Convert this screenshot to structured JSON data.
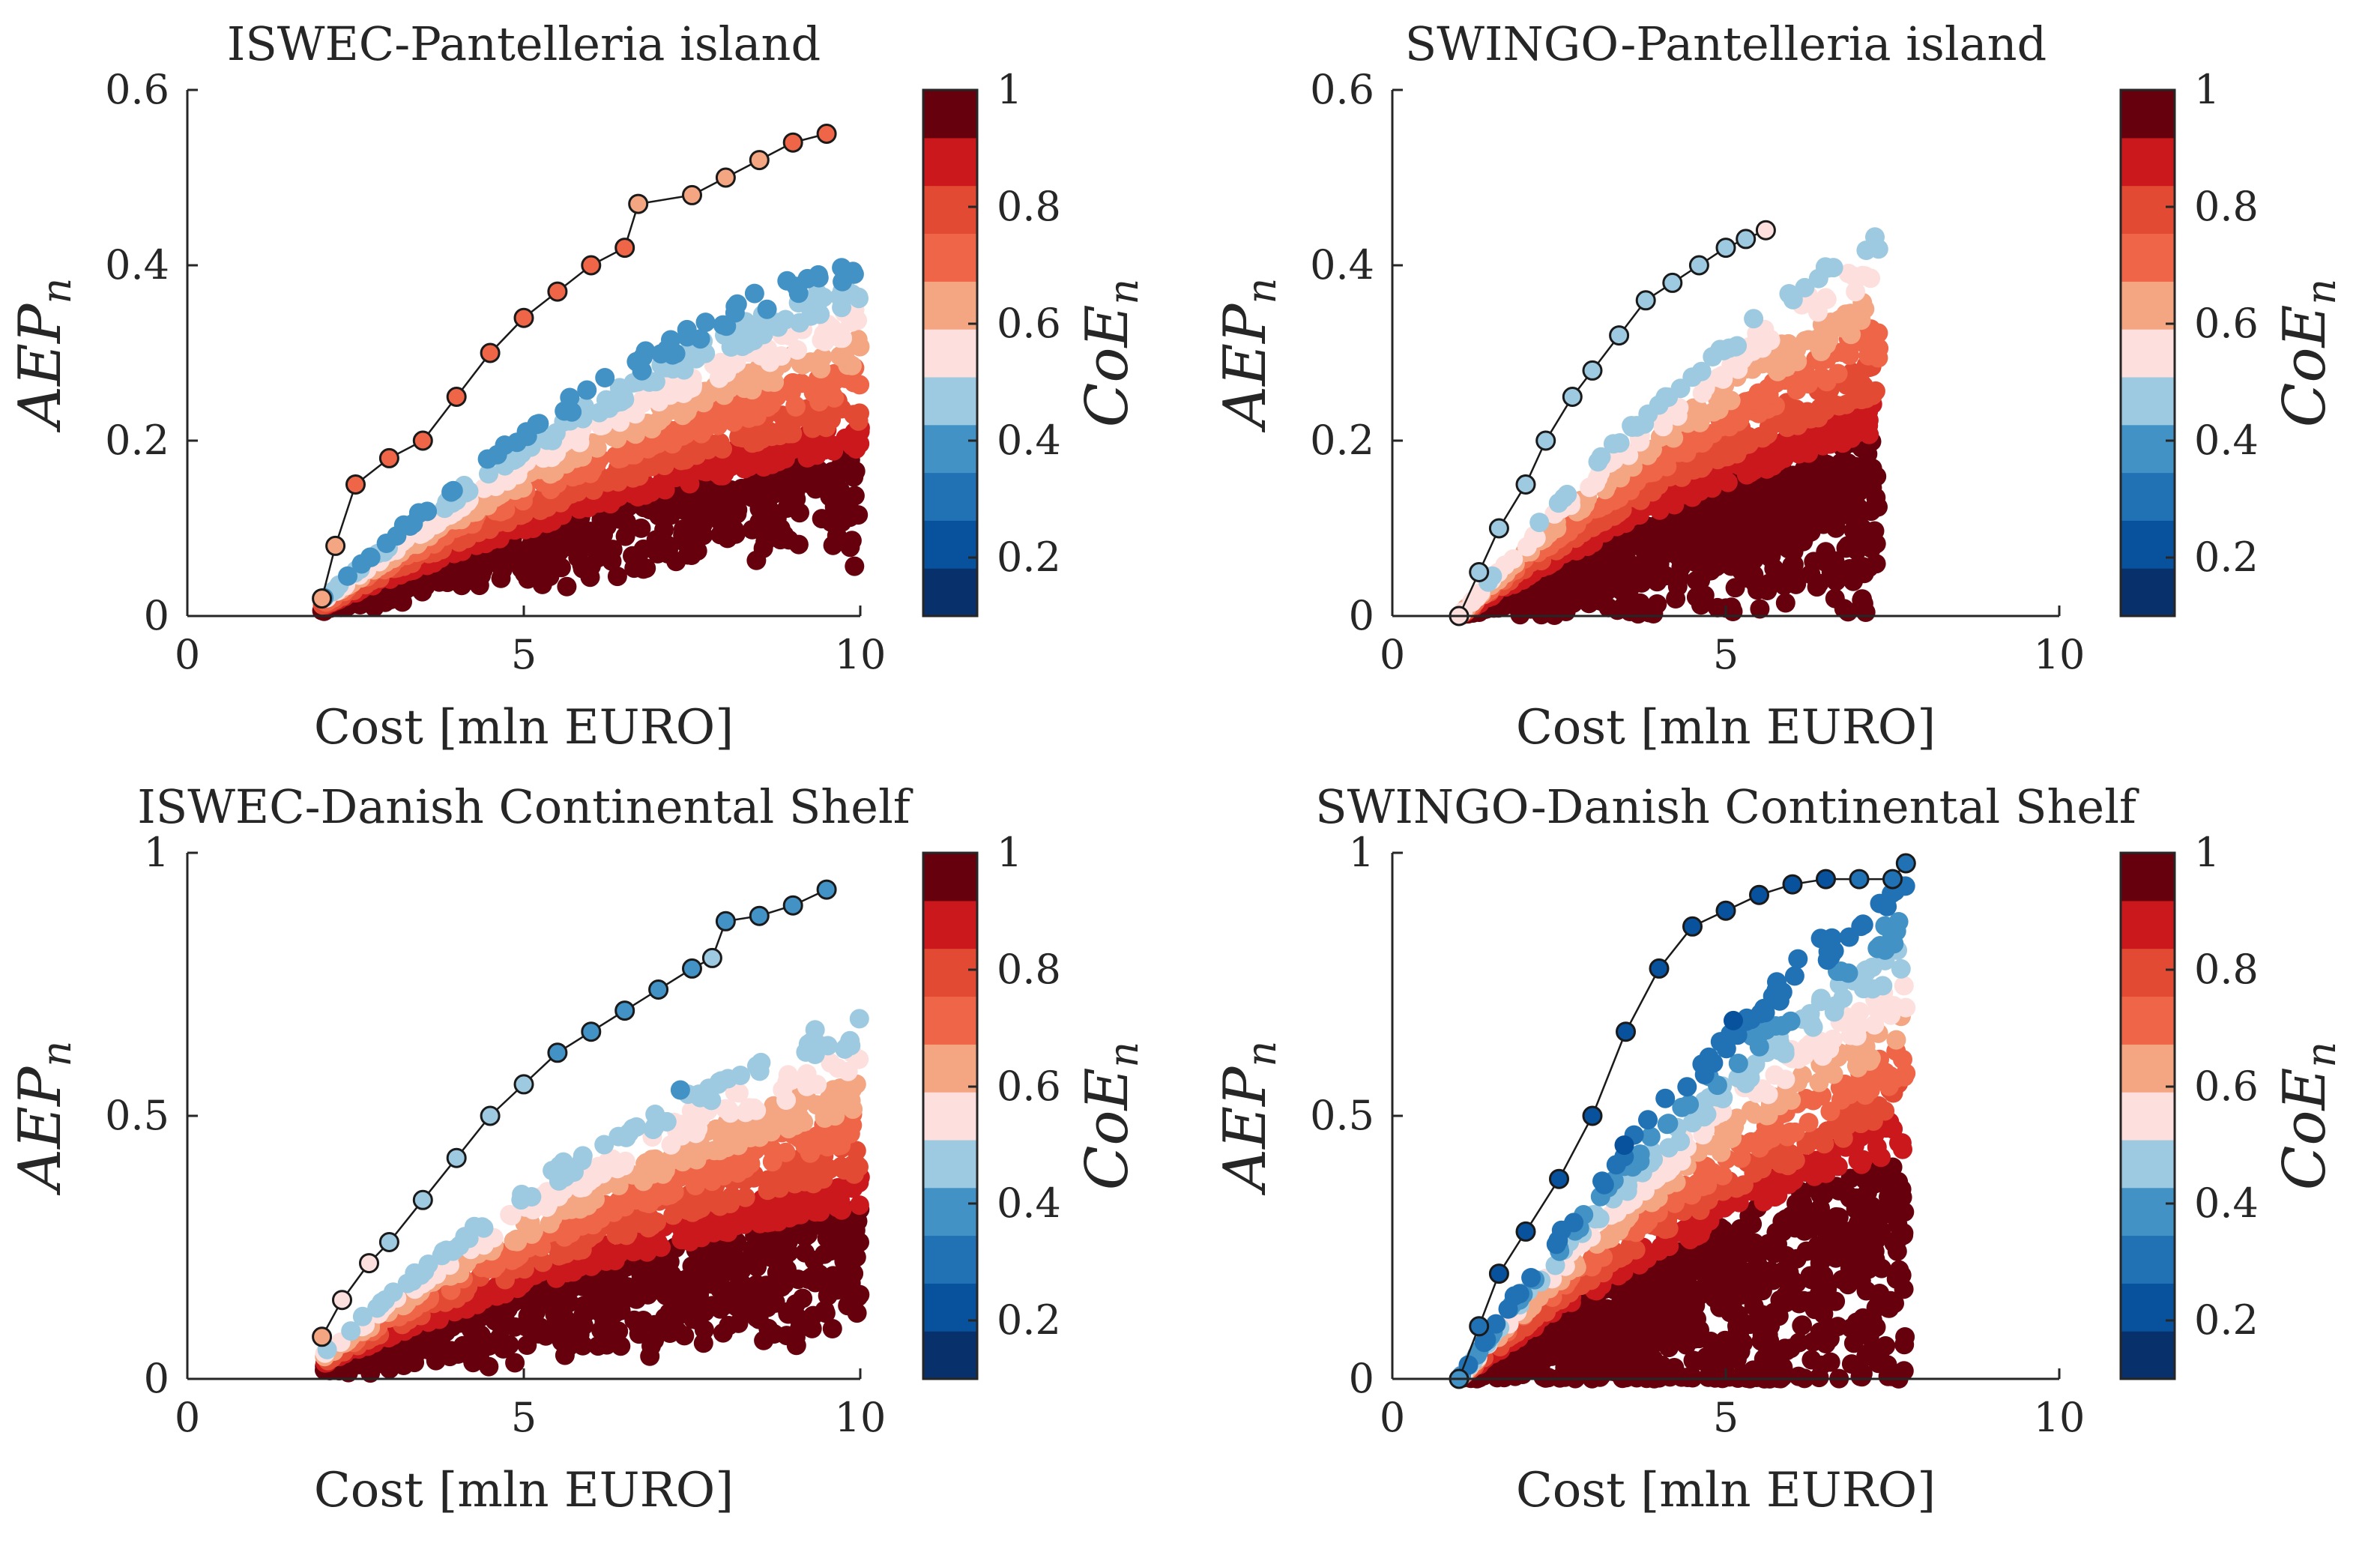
{
  "figure": {
    "layout": "2x2 grid of scatter plots with colorbars"
  },
  "colormap": {
    "name": "blue-to-red diverging",
    "colors": [
      "#08306b",
      "#08519c",
      "#2171b5",
      "#4292c6",
      "#9ecae1",
      "#fde0dd",
      "#f4a582",
      "#ef6548",
      "#e34a33",
      "#cb181d",
      "#67000d"
    ],
    "pareto_edge_color": "#1a1a1a",
    "pareto_line_color": "#1a1a1a"
  },
  "chart_data": [
    {
      "id": "iswec-pantelleria",
      "type": "scatter",
      "title": "ISWEC-Pantelleria island",
      "xlabel": "Cost [mln EURO]",
      "ylabel": "AEP_n",
      "ylabel_main": "AEP",
      "ylabel_sub": "n",
      "xlim": [
        0,
        10
      ],
      "ylim": [
        0,
        0.6
      ],
      "xticks": [
        0,
        5,
        10
      ],
      "xtick_labels": [
        "0",
        "5",
        "10"
      ],
      "yticks": [
        0,
        0.2,
        0.4,
        0.6
      ],
      "ytick_labels": [
        "0",
        "0.2",
        "0.4",
        "0.6"
      ],
      "cloud": {
        "x_min": 2.0,
        "x_max": 10.0,
        "front_slope": 0.073,
        "front_offset": 0.02,
        "coe_top": 0.35,
        "coe_bottom": 1.0,
        "spread": 0.55
      },
      "pareto_front": {
        "x": [
          2.0,
          2.2,
          2.5,
          3.0,
          3.5,
          4.0,
          4.5,
          5.0,
          5.5,
          6.0,
          6.5,
          6.7,
          7.5,
          8.0,
          8.5,
          9.0,
          9.5
        ],
        "y": [
          0.02,
          0.08,
          0.15,
          0.18,
          0.2,
          0.25,
          0.3,
          0.34,
          0.37,
          0.4,
          0.42,
          0.47,
          0.48,
          0.5,
          0.52,
          0.54,
          0.55
        ],
        "coe": [
          0.6,
          0.65,
          0.7,
          0.7,
          0.72,
          0.72,
          0.74,
          0.74,
          0.74,
          0.75,
          0.75,
          0.65,
          0.65,
          0.66,
          0.67,
          0.68,
          0.68
        ]
      },
      "colorbar": {
        "label": "CoE_n",
        "label_main": "CoE",
        "label_sub": "n",
        "range": [
          0.1,
          1.0
        ],
        "ticks": [
          0.2,
          0.4,
          0.6,
          0.8,
          1.0
        ],
        "tick_labels": [
          "0.2",
          "0.4",
          "0.6",
          "0.8",
          "1"
        ]
      }
    },
    {
      "id": "swingo-pantelleria",
      "type": "scatter",
      "title": "SWINGO-Pantelleria island",
      "xlabel": "Cost [mln EURO]",
      "ylabel": "AEP_n",
      "ylabel_main": "AEP",
      "ylabel_sub": "n",
      "xlim": [
        0,
        10
      ],
      "ylim": [
        0,
        0.6
      ],
      "xticks": [
        0,
        5,
        10
      ],
      "xtick_labels": [
        "0",
        "5",
        "10"
      ],
      "yticks": [
        0,
        0.2,
        0.4,
        0.6
      ],
      "ytick_labels": [
        "0",
        "0.2",
        "0.4",
        "0.6"
      ],
      "cloud": {
        "x_min": 1.0,
        "x_max": 7.3,
        "front_slope": 0.095,
        "front_offset": 0.0,
        "coe_top": 0.45,
        "coe_bottom": 1.0,
        "spread": 0.65
      },
      "pareto_front": {
        "x": [
          1.0,
          1.3,
          1.6,
          2.0,
          2.3,
          2.7,
          3.0,
          3.4,
          3.8,
          4.2,
          4.6,
          5.0,
          5.3,
          5.6
        ],
        "y": [
          0.0,
          0.05,
          0.1,
          0.15,
          0.2,
          0.25,
          0.28,
          0.32,
          0.36,
          0.38,
          0.4,
          0.42,
          0.43,
          0.44
        ],
        "coe": [
          0.55,
          0.5,
          0.5,
          0.45,
          0.45,
          0.44,
          0.44,
          0.44,
          0.44,
          0.45,
          0.46,
          0.5,
          0.5,
          0.52
        ]
      },
      "colorbar": {
        "label": "CoE_n",
        "label_main": "CoE",
        "label_sub": "n",
        "range": [
          0.1,
          1.0
        ],
        "ticks": [
          0.2,
          0.4,
          0.6,
          0.8,
          1.0
        ],
        "tick_labels": [
          "0.2",
          "0.4",
          "0.6",
          "0.8",
          "1"
        ]
      }
    },
    {
      "id": "iswec-danish",
      "type": "scatter",
      "title": "ISWEC-Danish Continental Shelf",
      "xlabel": "Cost [mln EURO]",
      "ylabel": "AEP_n",
      "ylabel_main": "AEP",
      "ylabel_sub": "n",
      "xlim": [
        0,
        10
      ],
      "ylim": [
        0,
        1
      ],
      "xticks": [
        0,
        5,
        10
      ],
      "xtick_labels": [
        "0",
        "5",
        "10"
      ],
      "yticks": [
        0,
        0.5,
        1
      ],
      "ytick_labels": [
        "0",
        "0.5",
        "1"
      ],
      "cloud": {
        "x_min": 2.0,
        "x_max": 10.0,
        "front_slope": 0.12,
        "front_offset": 0.05,
        "coe_top": 0.42,
        "coe_bottom": 1.0,
        "spread": 0.6
      },
      "pareto_front": {
        "x": [
          2.0,
          2.3,
          2.7,
          3.0,
          3.5,
          4.0,
          4.5,
          5.0,
          5.5,
          6.0,
          6.5,
          7.0,
          7.5,
          7.8,
          8.0,
          8.5,
          9.0,
          9.5
        ],
        "y": [
          0.08,
          0.15,
          0.22,
          0.26,
          0.34,
          0.42,
          0.5,
          0.56,
          0.62,
          0.66,
          0.7,
          0.74,
          0.78,
          0.8,
          0.87,
          0.88,
          0.9,
          0.93
        ],
        "coe": [
          0.6,
          0.58,
          0.55,
          0.5,
          0.46,
          0.45,
          0.44,
          0.43,
          0.42,
          0.42,
          0.42,
          0.42,
          0.42,
          0.43,
          0.4,
          0.4,
          0.41,
          0.42
        ]
      },
      "colorbar": {
        "label": "CoE_n",
        "label_main": "CoE",
        "label_sub": "n",
        "range": [
          0.1,
          1.0
        ],
        "ticks": [
          0.2,
          0.4,
          0.6,
          0.8,
          1.0
        ],
        "tick_labels": [
          "0.2",
          "0.4",
          "0.6",
          "0.8",
          "1"
        ]
      }
    },
    {
      "id": "swingo-danish",
      "type": "scatter",
      "title": "SWINGO-Danish Continental Shelf",
      "xlabel": "Cost [mln EURO]",
      "ylabel": "AEP_n",
      "ylabel_main": "AEP",
      "ylabel_sub": "n",
      "xlim": [
        0,
        10
      ],
      "ylim": [
        0,
        1
      ],
      "xticks": [
        0,
        5,
        10
      ],
      "xtick_labels": [
        "0",
        "5",
        "10"
      ],
      "yticks": [
        0,
        0.5,
        1
      ],
      "ytick_labels": [
        "0",
        "0.5",
        "1"
      ],
      "cloud": {
        "x_min": 1.0,
        "x_max": 7.7,
        "front_slope": 0.2,
        "front_offset": 0.0,
        "coe_top": 0.25,
        "coe_bottom": 1.0,
        "spread": 0.72
      },
      "pareto_front": {
        "x": [
          1.0,
          1.3,
          1.6,
          2.0,
          2.5,
          3.0,
          3.5,
          4.0,
          4.5,
          5.0,
          5.5,
          6.0,
          6.5,
          7.0,
          7.5,
          7.7
        ],
        "y": [
          0.0,
          0.1,
          0.2,
          0.28,
          0.38,
          0.5,
          0.66,
          0.78,
          0.86,
          0.89,
          0.92,
          0.94,
          0.95,
          0.95,
          0.95,
          0.98
        ],
        "coe": [
          0.35,
          0.3,
          0.25,
          0.24,
          0.23,
          0.22,
          0.2,
          0.2,
          0.2,
          0.21,
          0.22,
          0.25,
          0.26,
          0.28,
          0.3,
          0.3
        ]
      },
      "colorbar": {
        "label": "CoE_n",
        "label_main": "CoE",
        "label_sub": "n",
        "range": [
          0.1,
          1.0
        ],
        "ticks": [
          0.2,
          0.4,
          0.6,
          0.8,
          1.0
        ],
        "tick_labels": [
          "0.2",
          "0.4",
          "0.6",
          "0.8",
          "1"
        ]
      }
    }
  ]
}
